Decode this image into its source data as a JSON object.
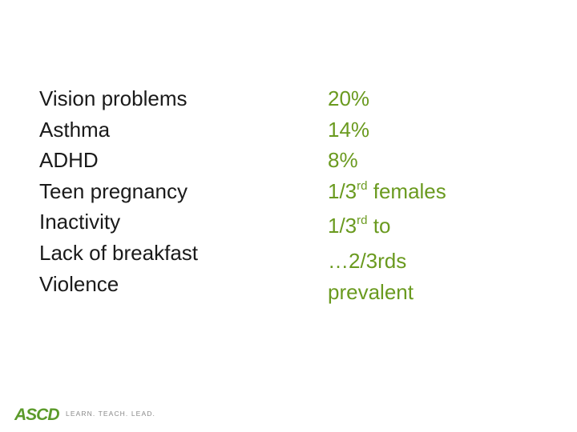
{
  "left_items": [
    "Vision problems",
    "Asthma",
    "ADHD",
    "Teen pregnancy",
    "Inactivity",
    "Lack of breakfast",
    "Violence"
  ],
  "right_items": {
    "r0": "20%",
    "r1": "14%",
    "r2": "8%",
    "r3_pre": "1/3",
    "r3_sup": "rd",
    "r3_post": " females",
    "r4_pre": "1/3",
    "r4_sup": "rd",
    "r4_post": " to",
    "r5": "…2/3rds",
    "r6": "prevalent"
  },
  "logo": {
    "text": "ASCD",
    "tagline": "LEARN. TEACH. LEAD.",
    "color": "#5b9a2a"
  },
  "colors": {
    "left_text": "#1a1a1a",
    "right_text": "#6a9a1f"
  }
}
